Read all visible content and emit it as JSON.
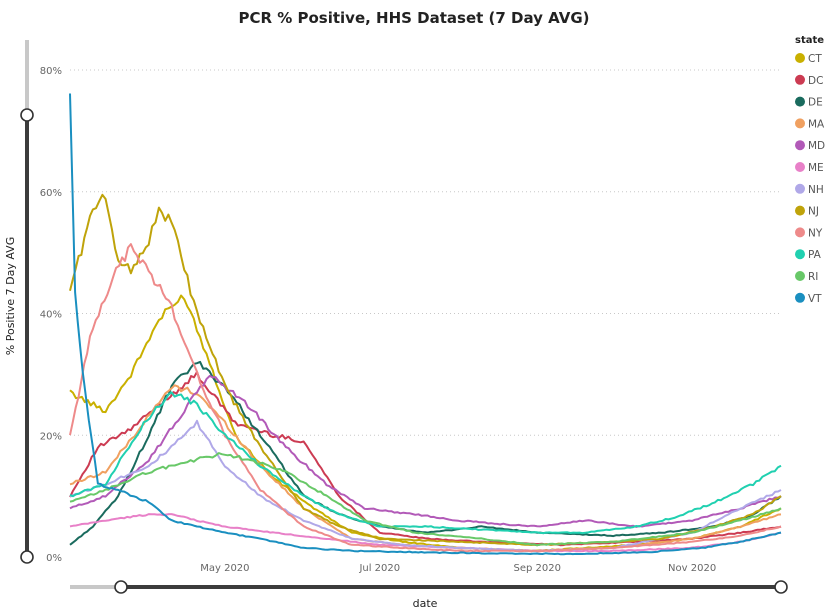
{
  "chart_data": {
    "type": "line",
    "title": "PCR % Positive, HHS Dataset (7 Day AVG)",
    "xlabel": "date",
    "ylabel": "% Positive 7 Day AVG",
    "ylim": [
      0,
      80
    ],
    "y_ticks": [
      0,
      20,
      40,
      60,
      80
    ],
    "y_tick_labels": [
      "0%",
      "20%",
      "40%",
      "60%",
      "80%"
    ],
    "xlim": [
      "2020-03-01",
      "2020-12-06"
    ],
    "x_ticks": [
      "2020-05-01",
      "2020-07-01",
      "2020-09-01",
      "2020-11-01"
    ],
    "x_tick_labels": [
      "May 2020",
      "Jul 2020",
      "Sep 2020",
      "Nov 2020"
    ],
    "grid": true,
    "legend": {
      "title": "state",
      "placement": "right"
    },
    "series": [
      {
        "name": "CT",
        "color": "#c9b000",
        "x": [
          "2020-03-01",
          "2020-03-15",
          "2020-03-25",
          "2020-04-05",
          "2020-04-15",
          "2020-04-25",
          "2020-05-05",
          "2020-05-20",
          "2020-06-05",
          "2020-06-20",
          "2020-07-10",
          "2020-08-01",
          "2020-09-01",
          "2020-09-20",
          "2020-10-10",
          "2020-11-01",
          "2020-11-20",
          "2020-12-06"
        ],
        "values": [
          27,
          24,
          30,
          39,
          43,
          32,
          20,
          13,
          8,
          4,
          2.5,
          1.5,
          1,
          1.5,
          2,
          3,
          5,
          8
        ]
      },
      {
        "name": "DC",
        "color": "#cc3b52",
        "x": [
          "2020-03-01",
          "2020-03-12",
          "2020-03-25",
          "2020-04-05",
          "2020-04-20",
          "2020-05-05",
          "2020-05-20",
          "2020-06-01",
          "2020-06-15",
          "2020-07-01",
          "2020-07-20",
          "2020-08-10",
          "2020-09-10",
          "2020-10-10",
          "2020-11-01",
          "2020-11-20",
          "2020-12-06"
        ],
        "values": [
          10,
          18,
          21,
          25,
          30,
          22,
          20,
          19,
          10,
          4,
          3,
          2.5,
          2,
          2.5,
          3,
          4,
          5
        ]
      },
      {
        "name": "DE",
        "color": "#1a6b5e",
        "x": [
          "2020-03-01",
          "2020-03-10",
          "2020-03-20",
          "2020-04-01",
          "2020-04-10",
          "2020-04-20",
          "2020-05-01",
          "2020-05-15",
          "2020-06-01",
          "2020-06-15",
          "2020-07-01",
          "2020-07-20",
          "2020-08-10",
          "2020-09-01",
          "2020-10-01",
          "2020-10-20",
          "2020-11-10",
          "2020-11-25",
          "2020-12-06"
        ],
        "values": [
          2,
          5,
          10,
          20,
          28,
          32,
          28,
          20,
          10,
          7,
          5,
          4,
          5,
          4,
          3.5,
          4,
          5,
          7,
          10
        ]
      },
      {
        "name": "MA",
        "color": "#f0a060",
        "x": [
          "2020-03-01",
          "2020-03-15",
          "2020-03-30",
          "2020-04-10",
          "2020-04-20",
          "2020-05-01",
          "2020-05-15",
          "2020-06-01",
          "2020-06-20",
          "2020-07-10",
          "2020-08-01",
          "2020-09-01",
          "2020-10-01",
          "2020-11-01",
          "2020-11-20",
          "2020-12-06"
        ],
        "values": [
          12,
          14,
          22,
          28,
          27,
          22,
          15,
          8,
          3,
          2,
          1.5,
          1,
          1.5,
          3,
          5,
          7
        ]
      },
      {
        "name": "MD",
        "color": "#b25ab8",
        "x": [
          "2020-03-01",
          "2020-03-15",
          "2020-04-01",
          "2020-04-15",
          "2020-04-25",
          "2020-05-10",
          "2020-05-25",
          "2020-06-10",
          "2020-06-25",
          "2020-07-15",
          "2020-08-01",
          "2020-08-15",
          "2020-09-01",
          "2020-09-20",
          "2020-10-10",
          "2020-11-01",
          "2020-11-20",
          "2020-12-06"
        ],
        "values": [
          8,
          10,
          16,
          24,
          30,
          25,
          18,
          12,
          8,
          7,
          6,
          5.5,
          5,
          6,
          5,
          6,
          8,
          10
        ]
      },
      {
        "name": "ME",
        "color": "#e880c8",
        "x": [
          "2020-03-01",
          "2020-03-15",
          "2020-04-01",
          "2020-04-10",
          "2020-04-20",
          "2020-05-01",
          "2020-05-20",
          "2020-06-10",
          "2020-07-01",
          "2020-08-01",
          "2020-09-01",
          "2020-10-01",
          "2020-11-01",
          "2020-11-20",
          "2020-12-06"
        ],
        "values": [
          5,
          6,
          7,
          7,
          6,
          5,
          4,
          3,
          2,
          1.5,
          1,
          1,
          1.5,
          2.5,
          4
        ]
      },
      {
        "name": "NH",
        "color": "#b0a8e8",
        "x": [
          "2020-03-01",
          "2020-03-15",
          "2020-04-01",
          "2020-04-10",
          "2020-04-20",
          "2020-05-01",
          "2020-05-15",
          "2020-06-01",
          "2020-06-20",
          "2020-07-10",
          "2020-08-01",
          "2020-09-01",
          "2020-10-01",
          "2020-11-01",
          "2020-11-20",
          "2020-12-06"
        ],
        "values": [
          10,
          12,
          15,
          18,
          22,
          15,
          10,
          6,
          3,
          2,
          1.5,
          1,
          1.5,
          4,
          8,
          11
        ]
      },
      {
        "name": "NJ",
        "color": "#bfa30a",
        "x": [
          "2020-03-01",
          "2020-03-10",
          "2020-03-15",
          "2020-03-20",
          "2020-03-25",
          "2020-04-01",
          "2020-04-05",
          "2020-04-10",
          "2020-04-20",
          "2020-05-01",
          "2020-05-15",
          "2020-06-01",
          "2020-06-15",
          "2020-07-01",
          "2020-08-01",
          "2020-09-01",
          "2020-10-01",
          "2020-10-20",
          "2020-11-10",
          "2020-11-25",
          "2020-12-06"
        ],
        "values": [
          44,
          57,
          59,
          49,
          47,
          52,
          57,
          55,
          40,
          28,
          18,
          8,
          5,
          3,
          2.5,
          2,
          2.5,
          3,
          5,
          7,
          10
        ]
      },
      {
        "name": "NY",
        "color": "#ee8a8a",
        "x": [
          "2020-03-01",
          "2020-03-10",
          "2020-03-18",
          "2020-03-25",
          "2020-04-01",
          "2020-04-10",
          "2020-04-20",
          "2020-05-01",
          "2020-05-15",
          "2020-06-01",
          "2020-06-20",
          "2020-07-10",
          "2020-08-01",
          "2020-09-01",
          "2020-10-01",
          "2020-11-01",
          "2020-11-20",
          "2020-12-06"
        ],
        "values": [
          20,
          38,
          46,
          51,
          47,
          41,
          30,
          20,
          11,
          5,
          2,
          1.5,
          1,
          1,
          1.5,
          2.5,
          3.5,
          5
        ]
      },
      {
        "name": "PA",
        "color": "#20d0b0",
        "x": [
          "2020-03-01",
          "2020-03-15",
          "2020-03-30",
          "2020-04-10",
          "2020-04-20",
          "2020-05-01",
          "2020-05-15",
          "2020-06-01",
          "2020-06-15",
          "2020-07-01",
          "2020-07-20",
          "2020-08-10",
          "2020-09-01",
          "2020-09-20",
          "2020-10-10",
          "2020-10-25",
          "2020-11-10",
          "2020-11-25",
          "2020-12-06"
        ],
        "values": [
          10,
          12,
          22,
          27,
          25,
          20,
          15,
          10,
          7,
          5,
          5,
          4.5,
          4,
          4,
          5,
          6.5,
          9,
          12,
          15
        ]
      },
      {
        "name": "RI",
        "color": "#68c868",
        "x": [
          "2020-03-01",
          "2020-03-15",
          "2020-04-01",
          "2020-04-10",
          "2020-04-20",
          "2020-05-01",
          "2020-05-10",
          "2020-05-25",
          "2020-06-10",
          "2020-06-25",
          "2020-07-15",
          "2020-08-10",
          "2020-09-01",
          "2020-10-01",
          "2020-11-01",
          "2020-11-20",
          "2020-12-06"
        ],
        "values": [
          9,
          11,
          14,
          15,
          16,
          17,
          16,
          14,
          10,
          6,
          4,
          3,
          2,
          2.5,
          4,
          6,
          8
        ]
      },
      {
        "name": "VT",
        "color": "#1a8fc0",
        "x": [
          "2020-03-01",
          "2020-03-03",
          "2020-03-06",
          "2020-03-12",
          "2020-03-20",
          "2020-04-01",
          "2020-04-10",
          "2020-04-20",
          "2020-05-01",
          "2020-05-15",
          "2020-06-01",
          "2020-06-20",
          "2020-07-15",
          "2020-08-15",
          "2020-09-15",
          "2020-10-15",
          "2020-11-05",
          "2020-11-20",
          "2020-12-06"
        ],
        "values": [
          77,
          43,
          30,
          12,
          11,
          9,
          6,
          5,
          4,
          3,
          1.5,
          1,
          0.8,
          0.6,
          0.5,
          0.8,
          1.5,
          2.5,
          4
        ]
      }
    ]
  }
}
